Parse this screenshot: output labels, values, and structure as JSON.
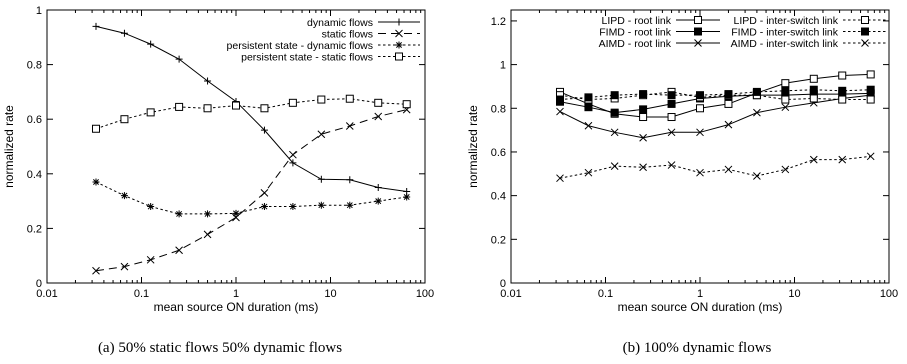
{
  "chart_data": [
    {
      "type": "line",
      "xscale": "log",
      "xlim": [
        0.01,
        100
      ],
      "ylim": [
        0,
        1
      ],
      "xticks": [
        "0.01",
        "0.1",
        "1",
        "10",
        "100"
      ],
      "yticks": [
        "0",
        "0.2",
        "0.4",
        "0.6",
        "0.8",
        "1"
      ],
      "xlabel": "mean source ON duration (ms)",
      "ylabel": "normalized rate",
      "legend": "top-right",
      "caption": "(a) 50% static flows 50% dynamic flows",
      "x": [
        0.033,
        0.066,
        0.125,
        0.25,
        0.5,
        1,
        2,
        4,
        8,
        16,
        32,
        64
      ],
      "series": [
        {
          "name": "dynamic flows",
          "marker": "plus",
          "line": "solid",
          "values": [
            0.94,
            0.915,
            0.875,
            0.82,
            0.74,
            0.665,
            0.56,
            0.44,
            0.38,
            0.378,
            0.35,
            0.335
          ]
        },
        {
          "name": "static flows",
          "marker": "cross",
          "line": "dashed",
          "values": [
            0.045,
            0.06,
            0.085,
            0.12,
            0.178,
            0.24,
            0.33,
            0.47,
            0.545,
            0.575,
            0.61,
            0.635
          ]
        },
        {
          "name": "persistent state - dynamic flows",
          "marker": "star",
          "line": "dotted",
          "values": [
            0.37,
            0.32,
            0.28,
            0.253,
            0.253,
            0.255,
            0.28,
            0.28,
            0.285,
            0.285,
            0.3,
            0.315
          ]
        },
        {
          "name": "persistent state - static flows",
          "marker": "square",
          "line": "dotted",
          "values": [
            0.565,
            0.6,
            0.625,
            0.645,
            0.64,
            0.65,
            0.64,
            0.66,
            0.672,
            0.675,
            0.66,
            0.655
          ]
        }
      ]
    },
    {
      "type": "line",
      "xscale": "log",
      "xlim": [
        0.01,
        100
      ],
      "ylim": [
        0,
        1.25
      ],
      "xticks": [
        "0.01",
        "0.1",
        "1",
        "10",
        "100"
      ],
      "yticks": [
        "0",
        "0.2",
        "0.4",
        "0.6",
        "0.8",
        "1",
        "1.2"
      ],
      "xlabel": "mean source ON duration (ms)",
      "ylabel": "normalized rate",
      "legend": "top",
      "caption": "(b) 100% dynamic flows",
      "x": [
        0.033,
        0.066,
        0.125,
        0.25,
        0.5,
        1,
        2,
        4,
        8,
        16,
        32,
        64
      ],
      "series": [
        {
          "name": "LIPD - root link",
          "marker": "open-square",
          "line": "solid",
          "values": [
            0.875,
            0.82,
            0.775,
            0.76,
            0.76,
            0.8,
            0.82,
            0.87,
            0.915,
            0.935,
            0.95,
            0.955
          ]
        },
        {
          "name": "FIMD - root link",
          "marker": "filled-square",
          "line": "solid",
          "values": [
            0.83,
            0.805,
            0.78,
            0.795,
            0.82,
            0.845,
            0.855,
            0.86,
            0.86,
            0.865,
            0.865,
            0.868
          ]
        },
        {
          "name": "AIMD - root link",
          "marker": "cross",
          "line": "solid",
          "values": [
            0.785,
            0.72,
            0.69,
            0.665,
            0.69,
            0.69,
            0.725,
            0.78,
            0.805,
            0.825,
            0.845,
            0.86
          ]
        },
        {
          "name": "LIPD - inter-switch link",
          "marker": "open-square",
          "line": "dotted",
          "values": [
            0.86,
            0.84,
            0.845,
            0.86,
            0.875,
            0.85,
            0.86,
            0.86,
            0.84,
            0.845,
            0.84,
            0.84
          ]
        },
        {
          "name": "FIMD - inter-switch link",
          "marker": "filled-square",
          "line": "dotted",
          "values": [
            0.84,
            0.85,
            0.86,
            0.865,
            0.86,
            0.86,
            0.865,
            0.875,
            0.88,
            0.885,
            0.88,
            0.885
          ]
        },
        {
          "name": "AIMD - inter-switch link",
          "marker": "cross",
          "line": "dotted",
          "values": [
            0.48,
            0.505,
            0.535,
            0.53,
            0.54,
            0.505,
            0.52,
            0.49,
            0.52,
            0.565,
            0.565,
            0.58
          ]
        }
      ]
    }
  ]
}
